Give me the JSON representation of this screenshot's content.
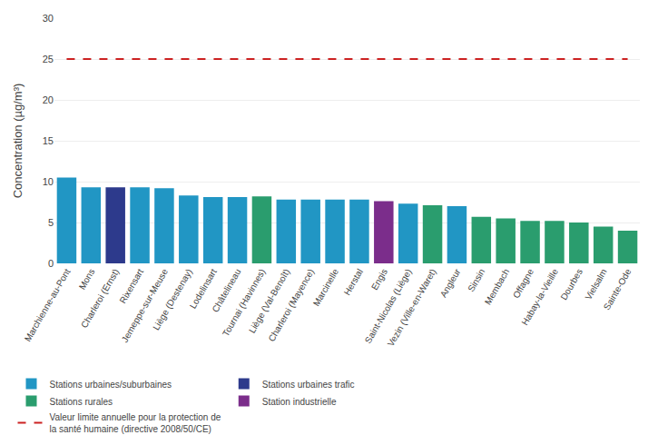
{
  "chart_data": {
    "type": "bar",
    "ylabel": "Concentration (µg/m³)",
    "categories": [
      "Marchienne-au-Pont",
      "Mons",
      "Charleroi (Ernst)",
      "Rixensart",
      "Jemeppe-sur-Meuse",
      "Liège (Destenay)",
      "Lodelinsart",
      "Châtelineau",
      "Tournai (Havinnes)",
      "Liège (Val-Benoît)",
      "Charleroi (Mayence)",
      "Marcinelle",
      "Herstal",
      "Engis",
      "Saint-Nicolas (Liège)",
      "Vezin (Ville-en-Waret)",
      "Angleur",
      "Sinsin",
      "Membach",
      "Offagne",
      "Habay-la-Vieille",
      "Dourbes",
      "Vielsalm",
      "Sainte-Ode"
    ],
    "series": [
      {
        "name": "Stations urbaines/suburbaines",
        "color": "#2196c4",
        "type": "bar",
        "values": [
          10.5,
          9.3,
          null,
          9.3,
          9.2,
          8.3,
          8.1,
          8.1,
          null,
          7.8,
          7.8,
          7.8,
          7.8,
          null,
          7.3,
          null,
          7.0,
          null,
          null,
          null,
          null,
          null,
          null,
          null
        ]
      },
      {
        "name": "Stations urbaines trafic",
        "color": "#2d3a8c",
        "type": "bar",
        "values": [
          null,
          null,
          9.3,
          null,
          null,
          null,
          null,
          null,
          null,
          null,
          null,
          null,
          null,
          null,
          null,
          null,
          null,
          null,
          null,
          null,
          null,
          null,
          null,
          null
        ]
      },
      {
        "name": "Stations rurales",
        "color": "#2a9d6e",
        "type": "bar",
        "values": [
          null,
          null,
          null,
          null,
          null,
          null,
          null,
          null,
          8.2,
          null,
          null,
          null,
          null,
          null,
          null,
          7.1,
          null,
          5.7,
          5.5,
          5.2,
          5.2,
          5.0,
          4.5,
          4.0
        ]
      },
      {
        "name": "Station industrielle",
        "color": "#7b2d8b",
        "type": "bar",
        "values": [
          null,
          null,
          null,
          null,
          null,
          null,
          null,
          null,
          null,
          null,
          null,
          null,
          null,
          7.6,
          null,
          null,
          null,
          null,
          null,
          null,
          null,
          null,
          null,
          null
        ]
      },
      {
        "name": "Valeur limite annuelle pour la protection de\nla santé humaine (directive 2008/50/CE)",
        "color": "#cc2222",
        "type": "line",
        "line_style": "dashed",
        "values": [
          25,
          25,
          25,
          25,
          25,
          25,
          25,
          25,
          25,
          25,
          25,
          25,
          25,
          25,
          25,
          25,
          25,
          25,
          25,
          25,
          25,
          25,
          25,
          25
        ]
      }
    ],
    "ylim": [
      0,
      30
    ],
    "yticks": [
      0,
      5,
      10,
      15,
      20,
      25,
      30
    ],
    "grid": true
  }
}
